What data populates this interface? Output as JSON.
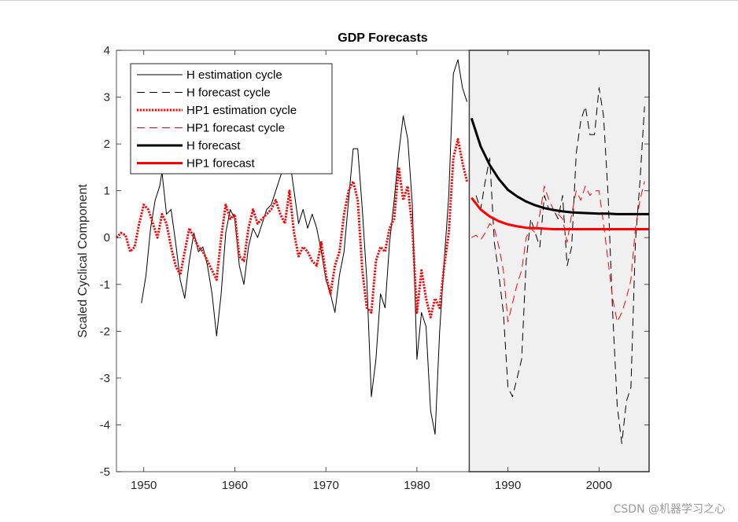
{
  "chart_data": {
    "type": "line",
    "title": "GDP Forecasts",
    "xlabel": "",
    "ylabel": "Scaled Cyclical Component",
    "xlim": [
      1947,
      2005.5
    ],
    "ylim": [
      -5,
      4
    ],
    "xticks": [
      1950,
      1960,
      1970,
      1980,
      1990,
      2000
    ],
    "yticks": [
      4,
      3,
      2,
      1,
      0,
      -1,
      -2,
      -3,
      -4,
      -5
    ],
    "forecast_region": {
      "x_start": 1985.75,
      "x_end": 2005.5,
      "shade": "#f0f0f0"
    },
    "legend_position": "top-left",
    "series": [
      {
        "name": "H estimation cycle",
        "color": "#000000",
        "style": "solid",
        "width": 1,
        "x": [
          1949.75,
          1950.25,
          1950.75,
          1951.25,
          1951.75,
          1952.0,
          1952.5,
          1953.0,
          1953.5,
          1954.0,
          1954.5,
          1955.0,
          1955.5,
          1956.0,
          1956.5,
          1957.0,
          1957.5,
          1958.0,
          1958.5,
          1959.0,
          1959.5,
          1960.0,
          1960.5,
          1961.0,
          1961.5,
          1962.0,
          1962.5,
          1963.0,
          1963.5,
          1964.0,
          1964.5,
          1965.0,
          1965.5,
          1966.0,
          1966.5,
          1967.0,
          1967.5,
          1968.0,
          1968.5,
          1969.0,
          1969.5,
          1970.0,
          1970.5,
          1971.0,
          1971.5,
          1972.0,
          1972.5,
          1973.0,
          1973.5,
          1974.0,
          1974.5,
          1975.0,
          1975.5,
          1976.0,
          1976.5,
          1977.0,
          1977.5,
          1978.0,
          1978.5,
          1979.0,
          1979.5,
          1980.0,
          1980.5,
          1981.0,
          1981.5,
          1982.0,
          1982.5,
          1983.0,
          1983.5,
          1984.0,
          1984.5,
          1985.0,
          1985.5
        ],
        "y": [
          -1.4,
          -0.8,
          0.2,
          0.8,
          1.1,
          1.4,
          0.5,
          0.6,
          -0.1,
          -0.9,
          -1.3,
          -0.5,
          0.1,
          -0.3,
          -0.2,
          -0.6,
          -1.2,
          -2.1,
          -1.2,
          0.1,
          0.6,
          0.4,
          -0.6,
          -1.0,
          -0.2,
          0.2,
          0.0,
          0.3,
          0.6,
          0.7,
          1.0,
          1.3,
          1.6,
          1.7,
          1.0,
          0.3,
          0.6,
          0.2,
          0.5,
          0.2,
          -0.3,
          -0.9,
          -1.2,
          -1.6,
          -0.8,
          -0.3,
          0.8,
          1.9,
          1.9,
          0.6,
          -0.9,
          -3.4,
          -2.6,
          -1.2,
          -1.5,
          -0.1,
          0.8,
          1.8,
          2.6,
          2.1,
          0.7,
          -2.6,
          -1.6,
          -1.9,
          -3.7,
          -4.2,
          -2.0,
          -0.5,
          0.9,
          3.5,
          3.8,
          3.2,
          2.9
        ]
      },
      {
        "name": "H forecast cycle",
        "color": "#000000",
        "style": "dashed",
        "width": 1,
        "x": [
          1986.5,
          1987.0,
          1987.5,
          1988.0,
          1988.5,
          1989.0,
          1989.5,
          1990.0,
          1990.5,
          1991.0,
          1991.5,
          1992.0,
          1992.5,
          1993.0,
          1993.5,
          1994.0,
          1994.5,
          1995.0,
          1995.5,
          1996.0,
          1996.5,
          1997.0,
          1997.5,
          1998.0,
          1998.5,
          1999.0,
          1999.5,
          2000.0,
          2000.5,
          2001.0,
          2001.5,
          2002.0,
          2002.5,
          2003.0,
          2003.5,
          2004.0,
          2004.5,
          2005.0
        ],
        "y": [
          0.9,
          0.6,
          1.2,
          1.7,
          -0.1,
          -0.8,
          -1.6,
          -3.2,
          -3.4,
          -3.0,
          -2.6,
          -0.5,
          0.4,
          0.1,
          -0.2,
          0.9,
          0.6,
          0.6,
          0.4,
          0.9,
          -0.6,
          -0.2,
          1.8,
          2.5,
          2.8,
          2.2,
          2.2,
          3.2,
          2.6,
          0.9,
          -1.6,
          -3.6,
          -4.4,
          -3.5,
          -3.2,
          -0.1,
          1.2,
          2.8
        ]
      },
      {
        "name": "HP1 estimation cycle",
        "color": "#ff0000",
        "style": "dotted",
        "width": 3,
        "x": [
          1947.0,
          1947.5,
          1948.0,
          1948.5,
          1949.0,
          1949.5,
          1950.0,
          1950.5,
          1951.0,
          1951.5,
          1952.0,
          1952.5,
          1953.0,
          1953.5,
          1954.0,
          1954.5,
          1955.0,
          1955.5,
          1956.0,
          1956.5,
          1957.0,
          1957.5,
          1958.0,
          1958.5,
          1959.0,
          1959.5,
          1960.0,
          1960.5,
          1961.0,
          1961.5,
          1962.0,
          1962.5,
          1963.0,
          1963.5,
          1964.0,
          1964.5,
          1965.0,
          1965.5,
          1966.0,
          1966.5,
          1967.0,
          1967.5,
          1968.0,
          1968.5,
          1969.0,
          1969.5,
          1970.0,
          1970.5,
          1971.0,
          1971.5,
          1972.0,
          1972.5,
          1973.0,
          1973.5,
          1974.0,
          1974.5,
          1975.0,
          1975.5,
          1976.0,
          1976.5,
          1977.0,
          1977.5,
          1978.0,
          1978.5,
          1979.0,
          1979.5,
          1980.0,
          1980.5,
          1981.0,
          1981.5,
          1982.0,
          1982.5,
          1983.0,
          1983.5,
          1984.0,
          1984.5,
          1985.0,
          1985.5
        ],
        "y": [
          0.0,
          0.1,
          0.05,
          -0.3,
          -0.2,
          0.3,
          0.7,
          0.6,
          0.3,
          0.0,
          0.5,
          0.3,
          -0.2,
          -0.6,
          -0.8,
          -0.3,
          0.2,
          0.0,
          -0.2,
          -0.3,
          -0.5,
          -0.7,
          -0.9,
          0.0,
          0.7,
          0.4,
          0.5,
          -0.4,
          -0.5,
          0.2,
          0.6,
          0.3,
          0.4,
          0.5,
          0.6,
          0.8,
          0.5,
          0.3,
          1.0,
          0.1,
          -0.4,
          -0.2,
          -0.3,
          -0.5,
          -0.6,
          -0.1,
          -0.8,
          -1.2,
          -0.6,
          -0.3,
          0.5,
          1.0,
          1.2,
          0.8,
          -0.7,
          -1.5,
          -1.6,
          -0.5,
          -0.2,
          -0.3,
          0.2,
          0.4,
          1.5,
          0.8,
          1.1,
          0.2,
          -1.6,
          -0.7,
          -1.3,
          -1.7,
          -1.3,
          -1.5,
          -0.6,
          0.1,
          1.7,
          2.1,
          1.6,
          1.2
        ]
      },
      {
        "name": "HP1 forecast cycle",
        "color": "#ff0000",
        "style": "dashed",
        "width": 1,
        "x": [
          1986.0,
          1986.5,
          1987.0,
          1987.5,
          1988.0,
          1988.5,
          1989.0,
          1989.5,
          1990.0,
          1990.5,
          1991.0,
          1991.5,
          1992.0,
          1992.5,
          1993.0,
          1993.5,
          1994.0,
          1994.5,
          1995.0,
          1995.5,
          1996.0,
          1996.5,
          1997.0,
          1997.5,
          1998.0,
          1998.5,
          1999.0,
          1999.5,
          2000.0,
          2000.5,
          2001.0,
          2001.5,
          2002.0,
          2002.5,
          2003.0,
          2003.5,
          2004.0,
          2004.5,
          2005.0
        ],
        "y": [
          0.0,
          0.05,
          -0.05,
          0.1,
          0.3,
          0.2,
          -0.2,
          -0.7,
          -1.8,
          -1.4,
          -1.0,
          -0.7,
          0.0,
          0.2,
          0.1,
          0.5,
          1.1,
          0.8,
          0.6,
          0.5,
          0.4,
          -0.1,
          0.5,
          1.0,
          0.8,
          1.1,
          0.9,
          1.0,
          1.0,
          0.3,
          -0.5,
          -1.3,
          -1.8,
          -1.6,
          -1.3,
          -0.9,
          0.2,
          0.8,
          1.2
        ]
      },
      {
        "name": "H forecast",
        "color": "#000000",
        "style": "solid",
        "width": 3,
        "x": [
          1986,
          1987,
          1988,
          1989,
          1990,
          1991,
          1992,
          1993,
          1994,
          1995,
          1996,
          1997,
          1998,
          1999,
          2000,
          2001,
          2002,
          2003,
          2004,
          2005.5
        ],
        "y": [
          2.55,
          1.95,
          1.55,
          1.25,
          1.02,
          0.88,
          0.77,
          0.69,
          0.63,
          0.59,
          0.56,
          0.54,
          0.53,
          0.52,
          0.51,
          0.51,
          0.5,
          0.5,
          0.5,
          0.5
        ]
      },
      {
        "name": "HP1 forecast",
        "color": "#ff0000",
        "style": "solid",
        "width": 3,
        "x": [
          1986,
          1987,
          1988,
          1989,
          1990,
          1991,
          1992,
          1993,
          1994,
          1995,
          1996,
          1997,
          1998,
          1999,
          2000,
          2001,
          2002,
          2003,
          2004,
          2005.5
        ],
        "y": [
          0.85,
          0.6,
          0.45,
          0.35,
          0.28,
          0.24,
          0.21,
          0.2,
          0.19,
          0.18,
          0.18,
          0.18,
          0.18,
          0.18,
          0.18,
          0.18,
          0.18,
          0.18,
          0.18,
          0.18
        ]
      }
    ]
  },
  "watermark": "CSDN @机器学习之心"
}
